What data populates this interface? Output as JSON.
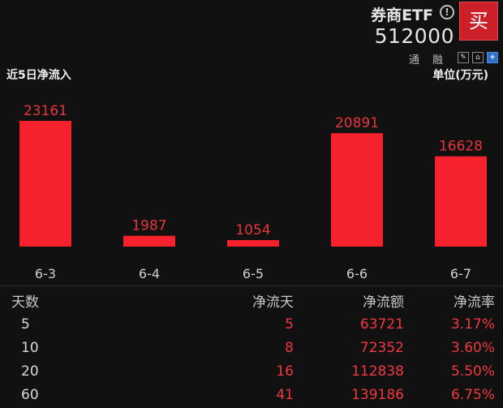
{
  "header": {
    "title": "券商ETF",
    "info_icon": "info-icon",
    "code": "512000",
    "buy_label": "买",
    "tags": "通 融",
    "icons": [
      "edit-icon",
      "home-icon",
      "add-icon"
    ],
    "accent": "#cc2029"
  },
  "section": {
    "title": "近5日净流入",
    "unit": "单位(万元)"
  },
  "chart_data": {
    "type": "bar",
    "categories": [
      "6-3",
      "6-4",
      "6-5",
      "6-6",
      "6-7"
    ],
    "values": [
      23161,
      1987,
      1054,
      20891,
      16628
    ],
    "title": "近5日净流入",
    "xlabel": "",
    "ylabel": "单位(万元)",
    "bar_color": "#f5222d",
    "grid": false,
    "legend": "none"
  },
  "stats": {
    "headers": [
      "天数",
      "净流天",
      "净流额",
      "净流率"
    ],
    "rows": [
      [
        "5",
        "5",
        "63721",
        "3.17%"
      ],
      [
        "10",
        "8",
        "72352",
        "3.60%"
      ],
      [
        "20",
        "16",
        "112838",
        "5.50%"
      ],
      [
        "60",
        "41",
        "139186",
        "6.75%"
      ]
    ]
  }
}
